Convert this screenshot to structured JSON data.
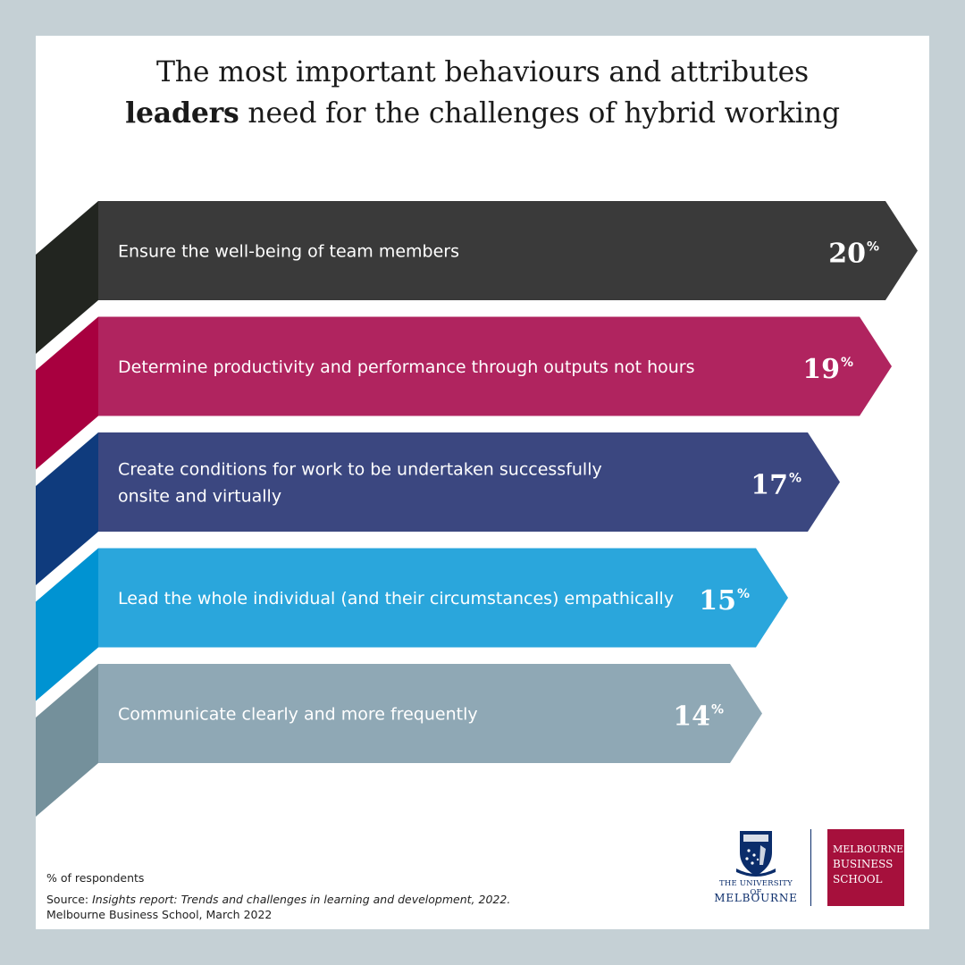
{
  "title": {
    "line1": "The most important behaviours and attributes",
    "line2_bold": "leaders",
    "line2_rest": " need for the challenges of hybrid working"
  },
  "chart_data": {
    "type": "bar",
    "orientation": "horizontal",
    "title": "The most important behaviours and attributes leaders need for the challenges of hybrid working",
    "unit": "% of respondents",
    "xlim": [
      0,
      20
    ],
    "categories": [
      [
        "Ensure the well-being of team members"
      ],
      [
        "Determine productivity and performance through outputs not hours"
      ],
      [
        "Create conditions for work to be undertaken successfully",
        "onsite and virtually"
      ],
      [
        "Lead the whole individual (and their circumstances) empathically"
      ],
      [
        "Communicate clearly and more frequently"
      ]
    ],
    "values": [
      20,
      19,
      17,
      15,
      14
    ],
    "value_suffix": "%",
    "colors": [
      "#3a3a3a",
      "#b0245f",
      "#3b4780",
      "#2aa6dc",
      "#8fa8b5"
    ],
    "fold_colors": [
      "#222520",
      "#a8003f",
      "#0f3b7d",
      "#0093d2",
      "#74909b"
    ]
  },
  "footnote": "% of respondents",
  "source": {
    "prefix": "Source: ",
    "italic": "Insights report: Trends and challenges in learning and development, 2022.",
    "line2": "Melbourne Business School, March 2022"
  },
  "logos": {
    "unimelb_line1": "THE UNIVERSITY OF",
    "unimelb_line2": "MELBOURNE",
    "mbs_line1": "MELBOURNE",
    "mbs_line2": "BUSINESS",
    "mbs_line3": "SCHOOL"
  }
}
